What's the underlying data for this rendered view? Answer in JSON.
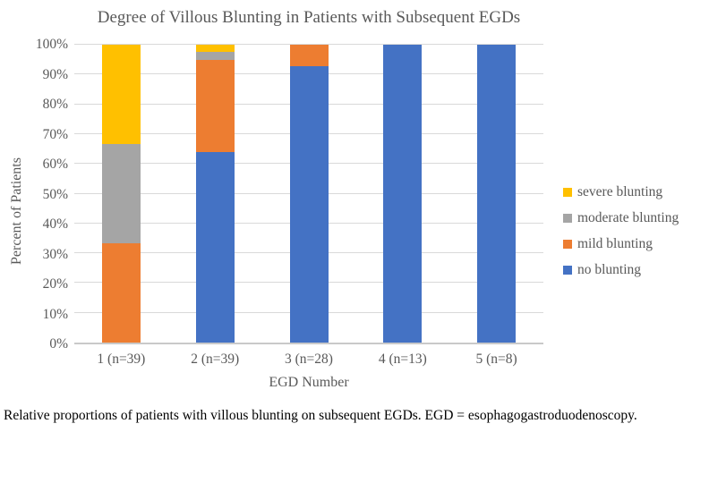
{
  "caption": "Relative proportions of patients with villous blunting on subsequent EGDs. EGD = esophagogastroduodenoscopy.",
  "chart_data": {
    "type": "bar",
    "subtype": "stacked-percent",
    "title": "Degree of Villous Blunting in Patients with Subsequent EGDs",
    "xlabel": "EGD Number",
    "ylabel": "Percent of Patients",
    "categories": [
      "1 (n=39)",
      "2 (n=39)",
      "3 (n=28)",
      "4 (n=13)",
      "5 (n=8)"
    ],
    "y_ticks": [
      "0%",
      "10%",
      "20%",
      "30%",
      "40%",
      "50%",
      "60%",
      "70%",
      "80%",
      "90%",
      "100%"
    ],
    "ylim": [
      0,
      100
    ],
    "grid": true,
    "legend_position": "right",
    "series": [
      {
        "name": "no blunting",
        "color": "#4472C4",
        "values": [
          0,
          64.1,
          92.9,
          100,
          100
        ]
      },
      {
        "name": "mild blunting",
        "color": "#ED7D31",
        "values": [
          33.3,
          30.8,
          7.1,
          0,
          0
        ]
      },
      {
        "name": "moderate blunting",
        "color": "#A5A5A5",
        "values": [
          33.3,
          2.6,
          0,
          0,
          0
        ]
      },
      {
        "name": "severe blunting",
        "color": "#FFC000",
        "values": [
          33.4,
          2.5,
          0,
          0,
          0
        ]
      }
    ],
    "legend_order": [
      "severe blunting",
      "moderate blunting",
      "mild blunting",
      "no blunting"
    ]
  },
  "colors": {
    "chart_text": "#595959",
    "gridline": "#d9d9d9",
    "axis_line": "#c9c9c9",
    "caption_text": "#000000"
  }
}
